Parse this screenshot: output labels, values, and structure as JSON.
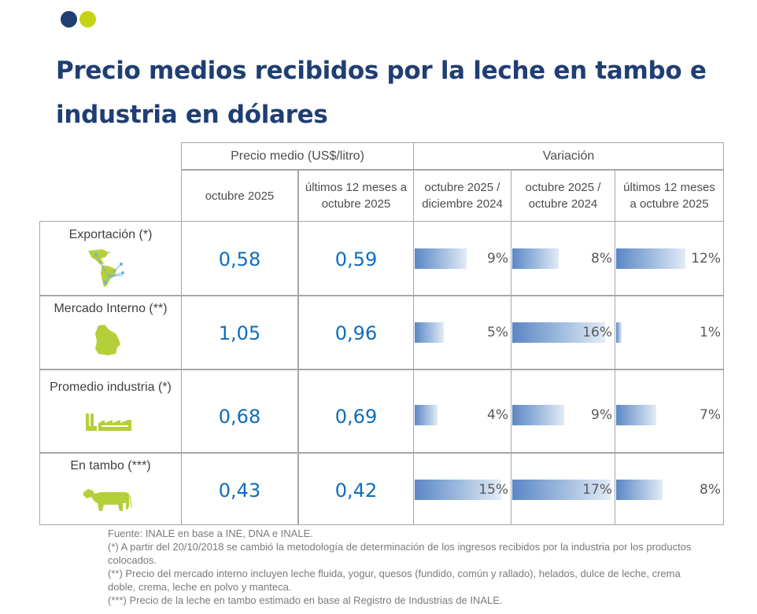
{
  "brand": {
    "colors": {
      "navy": "#1f3e73",
      "lime": "#c4d318",
      "price_blue": "#0e6dbc",
      "bar_blue": "#5b87c5"
    }
  },
  "title": "Precio medios recibidos por la leche en tambo e industria en dólares",
  "table": {
    "group_headers": {
      "price": "Precio medio (US$/litro)",
      "variation": "Variación"
    },
    "column_headers": [
      "octubre 2025",
      "últimos 12 meses a octubre 2025",
      "octubre 2025 / diciembre 2024",
      "octubre 2025 / octubre 2024",
      "últimos 12 meses a octubre 2025"
    ],
    "rows": [
      {
        "label": "Exportación (*)",
        "icon": "americas-map-icon",
        "price_month": "0,58",
        "price_12m": "0,59",
        "var_dic": "9%",
        "var_oct": "8%",
        "var_12m": "12%"
      },
      {
        "label": "Mercado Interno (**)",
        "icon": "uruguay-map-icon",
        "price_month": "1,05",
        "price_12m": "0,96",
        "var_dic": "5%",
        "var_oct": "16%",
        "var_12m": "1%"
      },
      {
        "label": "Promedio industria (*)",
        "icon": "factory-icon",
        "price_month": "0,68",
        "price_12m": "0,69",
        "var_dic": "4%",
        "var_oct": "9%",
        "var_12m": "7%"
      },
      {
        "label": "En tambo (***)",
        "icon": "cow-icon",
        "price_month": "0,43",
        "price_12m": "0,42",
        "var_dic": "15%",
        "var_oct": "17%",
        "var_12m": "8%"
      }
    ]
  },
  "chart_data": {
    "type": "bar",
    "title": "Variación",
    "categories": [
      "Exportación (*)",
      "Mercado Interno (**)",
      "Promedio industria (*)",
      "En tambo (***)"
    ],
    "series": [
      {
        "name": "octubre 2025 / diciembre 2024",
        "values": [
          9,
          5,
          4,
          15
        ]
      },
      {
        "name": "octubre 2025 / octubre 2024",
        "values": [
          8,
          16,
          9,
          17
        ]
      },
      {
        "name": "últimos 12 meses a octubre 2025",
        "values": [
          12,
          1,
          7,
          8
        ]
      }
    ],
    "unit": "%",
    "xlim": [
      0,
      17
    ]
  },
  "notes": [
    "Fuente: INALE en base a INE, DNA e INALE.",
    "(*) A partir del 20/10/2018 se cambió la metodología de determinación de los ingresos recibidos por la industria por los productos colocados.",
    "(**) Precio del mercado interno incluyen leche fluida, yogur, quesos (fundido, común y rallado), helados, dulce de leche, crema doble, crema, leche en polvo y manteca.",
    "(***) Precio de la leche en tambo estimado en base al Registro de Industrias de INALE."
  ]
}
